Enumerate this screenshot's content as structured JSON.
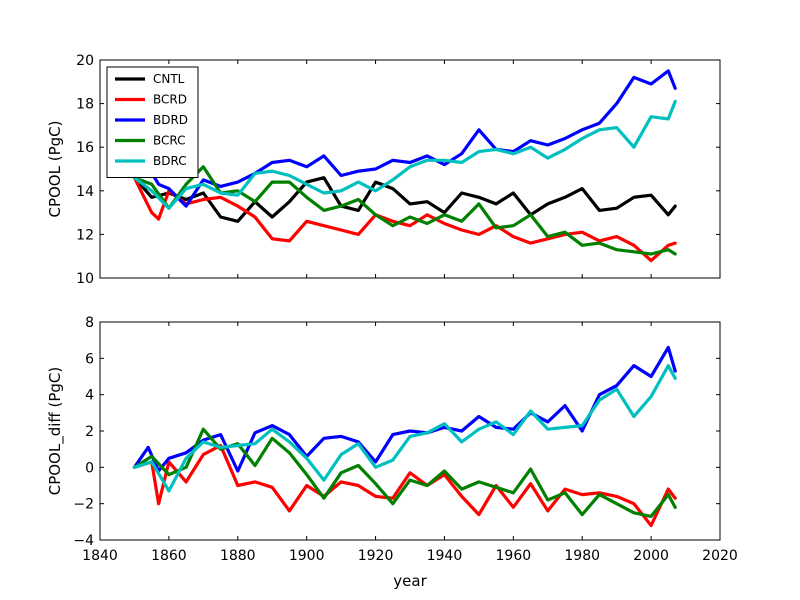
{
  "chart_data": [
    {
      "type": "line",
      "ylabel": "CPOOL (PgC)",
      "xlabel": "",
      "xlim": [
        1840,
        2020
      ],
      "ylim": [
        10,
        20
      ],
      "yticks": [
        10,
        12,
        14,
        16,
        18,
        20
      ],
      "legend": [
        "CNTL",
        "BCRD",
        "BDRD",
        "BCRC",
        "BDRC"
      ],
      "legend_location": "top-left",
      "series": [
        {
          "name": "CNTL",
          "color": "#000000",
          "x": [
            1850,
            1855,
            1860,
            1865,
            1870,
            1875,
            1880,
            1885,
            1890,
            1895,
            1900,
            1905,
            1910,
            1915,
            1920,
            1925,
            1930,
            1935,
            1940,
            1945,
            1950,
            1955,
            1960,
            1965,
            1970,
            1975,
            1980,
            1985,
            1990,
            1995,
            2000,
            2005,
            2007
          ],
          "y": [
            14.6,
            13.7,
            13.9,
            13.6,
            13.9,
            12.8,
            12.6,
            13.5,
            12.8,
            13.5,
            14.4,
            14.6,
            13.3,
            13.1,
            14.4,
            14.1,
            13.4,
            13.5,
            13.0,
            13.9,
            13.7,
            13.4,
            13.9,
            12.9,
            13.4,
            13.7,
            14.1,
            13.1,
            13.2,
            13.7,
            13.8,
            12.9,
            13.3
          ]
        },
        {
          "name": "BCRD",
          "color": "#ff0000",
          "x": [
            1850,
            1855,
            1857,
            1860,
            1865,
            1870,
            1875,
            1880,
            1885,
            1890,
            1895,
            1900,
            1905,
            1910,
            1915,
            1920,
            1925,
            1930,
            1935,
            1940,
            1945,
            1950,
            1955,
            1960,
            1965,
            1970,
            1975,
            1980,
            1985,
            1990,
            1995,
            2000,
            2005,
            2007
          ],
          "y": [
            14.6,
            13.0,
            12.7,
            14.0,
            13.4,
            13.6,
            13.7,
            13.3,
            12.8,
            11.8,
            11.7,
            12.6,
            12.4,
            12.2,
            12.0,
            12.9,
            12.6,
            12.4,
            12.9,
            12.5,
            12.2,
            12.0,
            12.4,
            11.9,
            11.6,
            11.8,
            12.0,
            12.1,
            11.7,
            11.9,
            11.5,
            10.8,
            11.5,
            11.6
          ]
        },
        {
          "name": "BDRD",
          "color": "#0000ff",
          "x": [
            1850,
            1854,
            1857,
            1860,
            1865,
            1870,
            1875,
            1880,
            1885,
            1890,
            1895,
            1900,
            1905,
            1910,
            1915,
            1920,
            1925,
            1930,
            1935,
            1940,
            1945,
            1950,
            1955,
            1960,
            1965,
            1970,
            1975,
            1980,
            1985,
            1990,
            1995,
            2000,
            2005,
            2007
          ],
          "y": [
            14.6,
            15.1,
            14.3,
            14.1,
            13.3,
            14.5,
            14.2,
            14.4,
            14.8,
            15.3,
            15.4,
            15.1,
            15.6,
            14.7,
            14.9,
            15.0,
            15.4,
            15.3,
            15.6,
            15.2,
            15.7,
            16.8,
            15.9,
            15.8,
            16.3,
            16.1,
            16.4,
            16.8,
            17.1,
            18.0,
            19.2,
            18.9,
            19.5,
            18.7
          ]
        },
        {
          "name": "BCRC",
          "color": "#008000",
          "x": [
            1850,
            1855,
            1860,
            1865,
            1870,
            1875,
            1880,
            1885,
            1890,
            1895,
            1900,
            1905,
            1910,
            1915,
            1920,
            1925,
            1930,
            1935,
            1940,
            1945,
            1950,
            1955,
            1960,
            1965,
            1970,
            1975,
            1980,
            1985,
            1990,
            1995,
            2000,
            2005,
            2007
          ],
          "y": [
            14.6,
            14.3,
            13.2,
            14.3,
            15.1,
            13.9,
            14.0,
            13.5,
            14.4,
            14.4,
            13.7,
            13.1,
            13.3,
            13.6,
            12.9,
            12.4,
            12.8,
            12.5,
            12.9,
            12.6,
            13.4,
            12.3,
            12.4,
            12.9,
            11.9,
            12.1,
            11.5,
            11.6,
            11.3,
            11.2,
            11.1,
            11.3,
            11.1
          ]
        },
        {
          "name": "BDRC",
          "color": "#00bfbf",
          "x": [
            1850,
            1855,
            1860,
            1865,
            1870,
            1875,
            1880,
            1885,
            1890,
            1895,
            1900,
            1905,
            1910,
            1915,
            1920,
            1925,
            1930,
            1935,
            1940,
            1945,
            1950,
            1955,
            1960,
            1965,
            1970,
            1975,
            1980,
            1985,
            1990,
            1995,
            2000,
            2005,
            2007
          ],
          "y": [
            14.6,
            14.0,
            13.2,
            14.1,
            14.3,
            13.9,
            13.8,
            14.8,
            14.9,
            14.7,
            14.3,
            13.9,
            14.0,
            14.4,
            14.0,
            14.5,
            15.1,
            15.4,
            15.4,
            15.3,
            15.8,
            15.9,
            15.7,
            16.0,
            15.5,
            15.9,
            16.4,
            16.8,
            16.9,
            16.0,
            17.4,
            17.3,
            18.1
          ]
        }
      ]
    },
    {
      "type": "line",
      "ylabel": "CPOOL_diff (PgC)",
      "xlabel": "year",
      "xlim": [
        1840,
        2020
      ],
      "ylim": [
        -4,
        8
      ],
      "yticks": [
        -4,
        -2,
        0,
        2,
        4,
        6,
        8
      ],
      "xticks": [
        1840,
        1860,
        1880,
        1900,
        1920,
        1940,
        1960,
        1980,
        2000,
        2020
      ],
      "series": [
        {
          "name": "BCRD",
          "color": "#ff0000",
          "x": [
            1850,
            1855,
            1857,
            1860,
            1865,
            1870,
            1875,
            1880,
            1885,
            1890,
            1895,
            1900,
            1905,
            1910,
            1915,
            1920,
            1925,
            1930,
            1935,
            1940,
            1945,
            1950,
            1955,
            1960,
            1965,
            1970,
            1975,
            1980,
            1985,
            1990,
            1995,
            2000,
            2005,
            2007
          ],
          "y": [
            0.0,
            0.3,
            -2.0,
            0.3,
            -0.8,
            0.7,
            1.2,
            -1.0,
            -0.8,
            -1.1,
            -2.4,
            -1.0,
            -1.6,
            -0.8,
            -1.0,
            -1.6,
            -1.7,
            -0.3,
            -1.0,
            -0.4,
            -1.6,
            -2.6,
            -1.0,
            -2.2,
            -0.9,
            -2.4,
            -1.2,
            -1.5,
            -1.4,
            -1.6,
            -2.0,
            -3.2,
            -1.2,
            -1.7
          ]
        },
        {
          "name": "BDRD",
          "color": "#0000ff",
          "x": [
            1850,
            1854,
            1857,
            1860,
            1865,
            1870,
            1875,
            1880,
            1885,
            1890,
            1895,
            1900,
            1905,
            1910,
            1915,
            1920,
            1925,
            1930,
            1935,
            1940,
            1945,
            1950,
            1955,
            1960,
            1965,
            1970,
            1975,
            1980,
            1985,
            1990,
            1995,
            2000,
            2005,
            2007
          ],
          "y": [
            0.0,
            1.1,
            -0.2,
            0.5,
            0.8,
            1.5,
            1.8,
            -0.2,
            1.9,
            2.3,
            1.8,
            0.6,
            1.6,
            1.7,
            1.4,
            0.3,
            1.8,
            2.0,
            1.9,
            2.2,
            2.0,
            2.8,
            2.2,
            2.1,
            3.0,
            2.5,
            3.4,
            2.0,
            4.0,
            4.5,
            5.6,
            5.0,
            6.6,
            5.3
          ]
        },
        {
          "name": "BCRC",
          "color": "#008000",
          "x": [
            1850,
            1855,
            1860,
            1865,
            1870,
            1875,
            1880,
            1885,
            1890,
            1895,
            1900,
            1905,
            1910,
            1915,
            1920,
            1925,
            1930,
            1935,
            1940,
            1945,
            1950,
            1955,
            1960,
            1965,
            1970,
            1975,
            1980,
            1985,
            1990,
            1995,
            2000,
            2005,
            2007
          ],
          "y": [
            0.0,
            0.6,
            -0.4,
            0.0,
            2.1,
            1.0,
            1.3,
            0.1,
            1.6,
            0.8,
            -0.4,
            -1.7,
            -0.3,
            0.1,
            -0.9,
            -2.0,
            -0.7,
            -1.0,
            -0.2,
            -1.2,
            -0.8,
            -1.1,
            -1.4,
            -0.1,
            -1.8,
            -1.4,
            -2.6,
            -1.5,
            -2.0,
            -2.5,
            -2.7,
            -1.5,
            -2.2
          ]
        },
        {
          "name": "BDRC",
          "color": "#00bfbf",
          "x": [
            1850,
            1855,
            1860,
            1865,
            1870,
            1875,
            1880,
            1885,
            1890,
            1895,
            1900,
            1905,
            1910,
            1915,
            1920,
            1925,
            1930,
            1935,
            1940,
            1945,
            1950,
            1955,
            1960,
            1965,
            1970,
            1975,
            1980,
            1985,
            1990,
            1995,
            2000,
            2005,
            2007
          ],
          "y": [
            0.0,
            0.3,
            -1.3,
            0.5,
            1.4,
            1.1,
            1.2,
            1.3,
            2.1,
            1.4,
            0.5,
            -0.7,
            0.7,
            1.3,
            0.0,
            0.4,
            1.7,
            1.9,
            2.4,
            1.4,
            2.1,
            2.5,
            1.8,
            3.1,
            2.1,
            2.2,
            2.3,
            3.7,
            4.3,
            2.8,
            3.9,
            5.6,
            4.9
          ]
        }
      ]
    }
  ]
}
